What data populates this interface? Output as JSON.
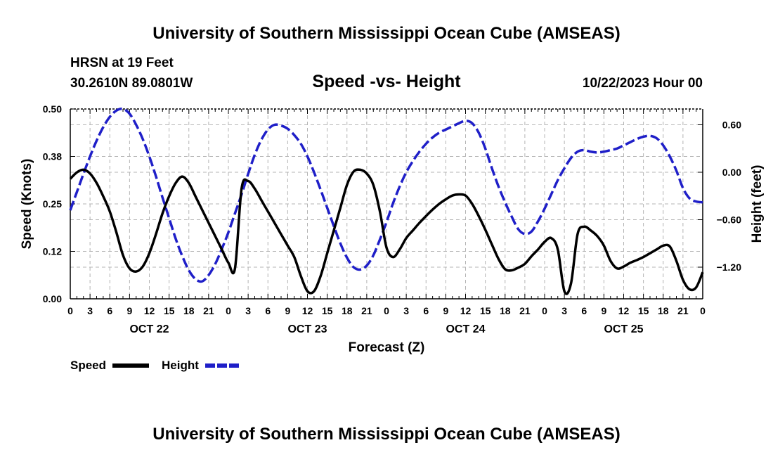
{
  "header": {
    "title": "University of Southern Mississippi Ocean Cube (AMSEAS)",
    "station": "HRSN at 19 Feet",
    "coords": "30.2610N  89.0801W",
    "subtitle": "Speed -vs- Height",
    "datetime": "10/22/2023 Hour 00"
  },
  "footer": {
    "title": "University of Southern Mississippi Ocean Cube (AMSEAS)"
  },
  "legend": {
    "speed_label": "Speed",
    "height_label": "Height"
  },
  "colors": {
    "speed": "#000000",
    "height": "#1f1fc8",
    "grid": "#b4b4b4"
  },
  "chart_data": {
    "type": "line",
    "title": "Speed -vs- Height",
    "xlabel": "Forecast (Z)",
    "ylabel": "Speed (Knots)",
    "y2label": "Height (feet)",
    "xlim": [
      0,
      96
    ],
    "ylim": [
      0,
      0.5
    ],
    "y2lim": [
      -1.6,
      0.8
    ],
    "hour_ticks": [
      "0",
      "3",
      "6",
      "9",
      "12",
      "15",
      "18",
      "21",
      "0",
      "3",
      "6",
      "9",
      "12",
      "15",
      "18",
      "21",
      "0",
      "3",
      "6",
      "9",
      "12",
      "15",
      "18",
      "21",
      "0",
      "3",
      "6",
      "9",
      "12",
      "15",
      "18",
      "21",
      "0"
    ],
    "day_labels": [
      {
        "label": "OCT 22",
        "hour": 12
      },
      {
        "label": "OCT 23",
        "hour": 36
      },
      {
        "label": "OCT 24",
        "hour": 60
      },
      {
        "label": "OCT 25",
        "hour": 84
      }
    ],
    "y_ticks": [
      "0.00",
      "0.12",
      "0.25",
      "0.38",
      "0.50"
    ],
    "y_tick_values": [
      0,
      0.125,
      0.25,
      0.375,
      0.5
    ],
    "y2_ticks": [
      "0.60",
      "0.00",
      "−0.60",
      "−1.20"
    ],
    "y2_tick_values": [
      0.6,
      0.0,
      -0.6,
      -1.2
    ],
    "grid": true,
    "series": [
      {
        "name": "Speed",
        "axis": "left",
        "style": "solid",
        "x": [
          0,
          1,
          2,
          3,
          4,
          5,
          6,
          7,
          8,
          9,
          10,
          11,
          12,
          13,
          14,
          15,
          16,
          17,
          18,
          19,
          20,
          21,
          22,
          23,
          24,
          25,
          26,
          27,
          28,
          29,
          30,
          31,
          32,
          33,
          34,
          35,
          36,
          37,
          38,
          39,
          40,
          41,
          42,
          43,
          44,
          45,
          46,
          47,
          48,
          49,
          50,
          51,
          52,
          53,
          54,
          55,
          56,
          57,
          58,
          59,
          60,
          61,
          62,
          63,
          64,
          65,
          66,
          67,
          68,
          69,
          70,
          71,
          72,
          73,
          74,
          75,
          76,
          77,
          78,
          79,
          80,
          81,
          82,
          83,
          84,
          85,
          86,
          87,
          88,
          89,
          90,
          91,
          92,
          93,
          94,
          95,
          96
        ],
        "values": [
          0.316,
          0.333,
          0.34,
          0.33,
          0.305,
          0.27,
          0.23,
          0.175,
          0.115,
          0.08,
          0.072,
          0.085,
          0.12,
          0.17,
          0.225,
          0.27,
          0.305,
          0.322,
          0.305,
          0.27,
          0.235,
          0.2,
          0.165,
          0.13,
          0.095,
          0.08,
          0.29,
          0.31,
          0.29,
          0.26,
          0.23,
          0.2,
          0.17,
          0.14,
          0.11,
          0.06,
          0.02,
          0.02,
          0.06,
          0.12,
          0.18,
          0.24,
          0.3,
          0.335,
          0.34,
          0.33,
          0.3,
          0.23,
          0.135,
          0.11,
          0.13,
          0.16,
          0.18,
          0.2,
          0.218,
          0.235,
          0.25,
          0.262,
          0.272,
          0.275,
          0.272,
          0.25,
          0.218,
          0.182,
          0.143,
          0.105,
          0.078,
          0.075,
          0.082,
          0.092,
          0.112,
          0.13,
          0.15,
          0.16,
          0.13,
          0.02,
          0.04,
          0.17,
          0.19,
          0.18,
          0.165,
          0.14,
          0.1,
          0.08,
          0.085,
          0.095,
          0.102,
          0.11,
          0.12,
          0.13,
          0.14,
          0.138,
          0.1,
          0.05,
          0.025,
          0.03,
          0.07
        ]
      },
      {
        "name": "Height",
        "axis": "right",
        "style": "dashed",
        "x": [
          0,
          1,
          2,
          3,
          4,
          5,
          6,
          7,
          8,
          9,
          10,
          11,
          12,
          13,
          14,
          15,
          16,
          17,
          18,
          19,
          20,
          21,
          22,
          23,
          24,
          25,
          26,
          27,
          28,
          29,
          30,
          31,
          32,
          33,
          34,
          35,
          36,
          37,
          38,
          39,
          40,
          41,
          42,
          43,
          44,
          45,
          46,
          47,
          48,
          49,
          50,
          51,
          52,
          53,
          54,
          55,
          56,
          57,
          58,
          59,
          60,
          61,
          62,
          63,
          64,
          65,
          66,
          67,
          68,
          69,
          70,
          71,
          72,
          73,
          74,
          75,
          76,
          77,
          78,
          79,
          80,
          81,
          82,
          83,
          84,
          85,
          86,
          87,
          88,
          89,
          90,
          91,
          92,
          93,
          94,
          95,
          96
        ],
        "values": [
          -0.48,
          -0.25,
          -0.02,
          0.2,
          0.4,
          0.57,
          0.7,
          0.78,
          0.8,
          0.74,
          0.6,
          0.42,
          0.2,
          -0.05,
          -0.32,
          -0.58,
          -0.84,
          -1.06,
          -1.24,
          -1.35,
          -1.38,
          -1.3,
          -1.16,
          -0.97,
          -0.76,
          -0.52,
          -0.28,
          -0.02,
          0.22,
          0.41,
          0.54,
          0.6,
          0.59,
          0.55,
          0.47,
          0.36,
          0.2,
          0.0,
          -0.22,
          -0.45,
          -0.68,
          -0.9,
          -1.08,
          -1.2,
          -1.23,
          -1.18,
          -1.05,
          -0.85,
          -0.63,
          -0.39,
          -0.18,
          0.0,
          0.14,
          0.26,
          0.36,
          0.44,
          0.5,
          0.54,
          0.58,
          0.62,
          0.65,
          0.62,
          0.5,
          0.3,
          0.05,
          -0.18,
          -0.38,
          -0.56,
          -0.72,
          -0.78,
          -0.75,
          -0.62,
          -0.46,
          -0.28,
          -0.1,
          0.05,
          0.18,
          0.26,
          0.28,
          0.26,
          0.25,
          0.26,
          0.28,
          0.3,
          0.34,
          0.38,
          0.42,
          0.45,
          0.46,
          0.43,
          0.34,
          0.2,
          0.02,
          -0.2,
          -0.33,
          -0.37,
          -0.38
        ]
      }
    ]
  }
}
